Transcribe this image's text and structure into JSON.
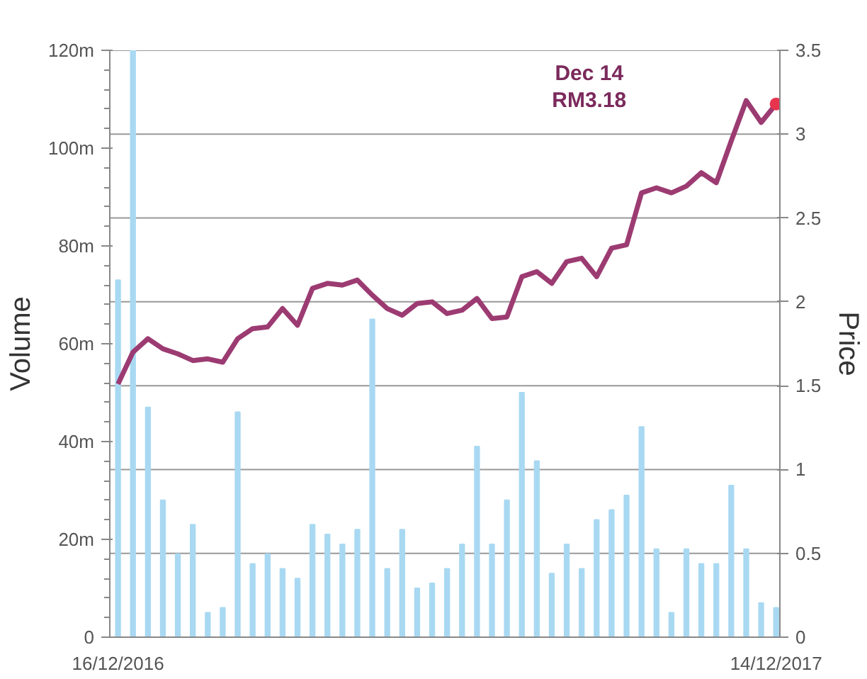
{
  "chart_data": {
    "type": "bar",
    "ylabel": "Volume",
    "y2label": "Price",
    "categories": [
      "16/12/2016",
      null,
      null,
      null,
      null,
      null,
      null,
      null,
      null,
      null,
      null,
      null,
      null,
      null,
      null,
      null,
      null,
      null,
      null,
      null,
      null,
      null,
      null,
      null,
      null,
      null,
      null,
      null,
      null,
      null,
      null,
      null,
      null,
      null,
      null,
      null,
      null,
      null,
      null,
      null,
      null,
      null,
      null,
      null,
      "14/12/2017"
    ],
    "ylim": [
      0,
      120
    ],
    "yticks": [
      0,
      {
        "value": 20,
        "label": "20m"
      },
      {
        "value": 40,
        "label": "40m"
      },
      {
        "value": 60,
        "label": "60m"
      },
      {
        "value": 80,
        "label": "80m"
      },
      {
        "value": 100,
        "label": "100m"
      },
      {
        "value": 120,
        "label": "120m"
      }
    ],
    "y2lim": [
      0,
      3.5
    ],
    "y2ticks": [
      0,
      0.5,
      1,
      1.5,
      2,
      2.5,
      3,
      3.5
    ],
    "grid": "y2",
    "series": [
      {
        "color": "#a9d9f2",
        "values": [
          73,
          120,
          47,
          28,
          17,
          23,
          5,
          6,
          46,
          15,
          17,
          14,
          12,
          23,
          21,
          19,
          22,
          65,
          14,
          22,
          10,
          11,
          14,
          19,
          39,
          19,
          28,
          50,
          36,
          13,
          19,
          14,
          24,
          26,
          29,
          43,
          18,
          5,
          18,
          15,
          15,
          31,
          18,
          7,
          6
        ]
      },
      {
        "type": "line",
        "axis": "y2",
        "color": "#9c3b72",
        "values": [
          1.51,
          1.7,
          1.78,
          1.72,
          1.69,
          1.65,
          1.66,
          1.64,
          1.78,
          1.84,
          1.85,
          1.96,
          1.86,
          2.08,
          2.11,
          2.1,
          2.13,
          2.04,
          1.96,
          1.92,
          1.99,
          2.0,
          1.93,
          1.95,
          2.02,
          1.9,
          1.91,
          2.15,
          2.18,
          2.11,
          2.24,
          2.26,
          2.15,
          2.32,
          2.34,
          2.65,
          2.68,
          2.65,
          2.69,
          2.77,
          2.71,
          2.96,
          3.2,
          3.07,
          3.18
        ]
      }
    ],
    "annotations": [
      "Dec 14\nRM3.18"
    ]
  }
}
